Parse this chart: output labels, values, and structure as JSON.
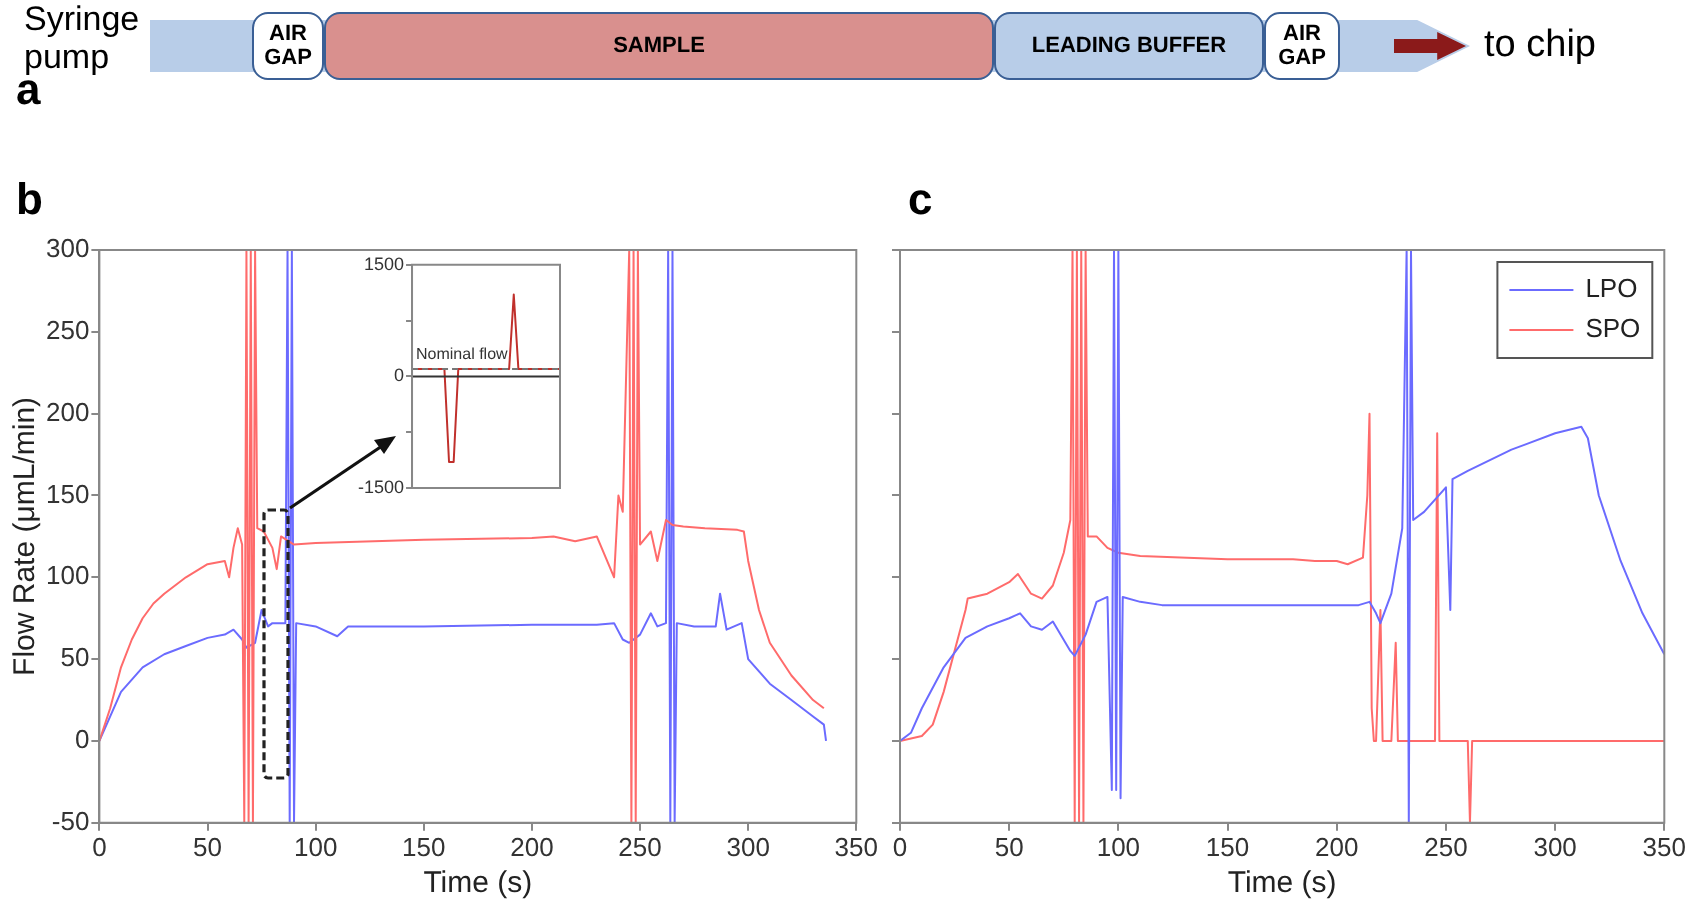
{
  "chart_data": [
    {
      "type": "other",
      "title": "a",
      "annotations": [
        "Syringe pump",
        "AIR GAP",
        "SAMPLE",
        "LEADING BUFFER",
        "AIR GAP",
        "to chip"
      ]
    },
    {
      "type": "line",
      "title": "b",
      "xlabel": "Time (s)",
      "ylabel": "Flow Rate (μmL/min)",
      "xlim": [
        0,
        350
      ],
      "ylim": [
        -50,
        300
      ],
      "xticks": [
        0,
        50,
        100,
        150,
        200,
        250,
        300,
        350
      ],
      "yticks": [
        -50,
        0,
        50,
        100,
        150,
        200,
        250,
        300
      ],
      "grid": false,
      "legend": false,
      "marker": "none",
      "line_style": "solid",
      "series": [
        {
          "color": "#ff6b6b",
          "x": [
            0,
            5,
            10,
            15,
            20,
            25,
            30,
            40,
            50,
            58,
            60,
            62,
            64,
            66,
            67,
            68,
            69,
            70,
            71,
            72,
            73,
            76,
            80,
            82,
            84,
            90,
            100,
            150,
            200,
            210,
            220,
            230,
            238,
            240,
            242,
            245,
            246,
            247,
            248,
            249,
            250,
            255,
            258,
            262,
            265,
            270,
            280,
            295,
            298,
            300,
            305,
            310,
            320,
            330,
            335
          ],
          "values": [
            0,
            20,
            45,
            62,
            75,
            84,
            90,
            100,
            108,
            110,
            100,
            118,
            130,
            120,
            -50,
            300,
            -50,
            300,
            -50,
            300,
            130,
            128,
            118,
            105,
            125,
            120,
            121,
            123,
            124,
            125,
            122,
            125,
            100,
            150,
            140,
            300,
            -50,
            300,
            -50,
            300,
            120,
            128,
            110,
            135,
            132,
            131,
            130,
            129,
            128,
            110,
            80,
            60,
            40,
            25,
            20
          ]
        },
        {
          "color": "#6b6bff",
          "x": [
            0,
            5,
            10,
            20,
            30,
            40,
            50,
            58,
            62,
            66,
            68,
            72,
            75,
            78,
            80,
            86,
            87,
            88,
            89,
            90,
            91,
            100,
            110,
            115,
            150,
            200,
            230,
            238,
            242,
            245,
            250,
            255,
            258,
            262,
            263,
            264,
            265,
            266,
            267,
            275,
            285,
            287,
            290,
            297,
            300,
            310,
            320,
            330,
            335,
            336
          ],
          "values": [
            0,
            15,
            30,
            45,
            53,
            58,
            63,
            65,
            68,
            62,
            57,
            60,
            80,
            70,
            72,
            72,
            300,
            -50,
            300,
            -50,
            72,
            70,
            64,
            70,
            70,
            71,
            71,
            72,
            62,
            60,
            65,
            78,
            70,
            72,
            300,
            -50,
            300,
            -50,
            72,
            70,
            70,
            90,
            68,
            72,
            50,
            35,
            25,
            15,
            10,
            0
          ]
        }
      ]
    },
    {
      "type": "line",
      "tick_labels": "y",
      "categories": [
        null,
        null,
        null,
        null,
        null,
        null,
        null,
        null,
        null,
        null,
        null,
        null,
        null,
        null,
        null,
        null,
        null,
        null,
        null,
        null,
        null,
        null,
        null,
        null,
        null,
        null,
        null,
        null,
        null,
        null,
        null,
        null,
        null
      ],
      "ylim": [
        -1500,
        1500
      ],
      "yticks": [
        -1500,
        {
          "value": -750,
          "label": null
        },
        0,
        {
          "value": 750,
          "label": null
        },
        1500
      ],
      "grid": false,
      "legend": false,
      "marker": "none",
      "ref_lines": [
        {
          "axis": "y",
          "value": 0,
          "color": "#333333",
          "line_style": "solid"
        },
        {
          "axis": "y",
          "value": 100,
          "label": "Nominal flow",
          "color": "#777777",
          "line_style": "dashed"
        }
      ],
      "series": [
        {
          "color": "#c0302c",
          "values": [
            100,
            100,
            100,
            100,
            100,
            100,
            100,
            100,
            -1150,
            -1150,
            100,
            100,
            100,
            100,
            100,
            100,
            100,
            100,
            100,
            100,
            100,
            100,
            1100,
            100,
            100,
            100,
            100,
            100,
            100,
            100,
            100,
            100,
            100
          ]
        }
      ]
    },
    {
      "type": "line",
      "title": "c",
      "xlabel": "Time (s)",
      "tick_labels": "x",
      "xlim": [
        0,
        350
      ],
      "ylim": [
        -50,
        300
      ],
      "xticks": [
        0,
        50,
        100,
        150,
        200,
        250,
        300,
        350
      ],
      "yticks": [
        -50,
        0,
        50,
        100,
        150,
        200,
        250,
        300
      ],
      "grid": false,
      "legend": "top right",
      "marker": "none",
      "line_style": "solid",
      "series": [
        {
          "name": "LPO",
          "color": "#6b6bff",
          "x": [
            0,
            5,
            10,
            20,
            30,
            40,
            50,
            55,
            60,
            65,
            70,
            78,
            80,
            85,
            90,
            95,
            97,
            98,
            99,
            100,
            101,
            102,
            110,
            120,
            150,
            200,
            210,
            215,
            218,
            220,
            225,
            230,
            232,
            233,
            234,
            235,
            240,
            250,
            252,
            253,
            260,
            280,
            300,
            312,
            315,
            320,
            330,
            340,
            350
          ],
          "values": [
            0,
            5,
            20,
            45,
            63,
            70,
            75,
            78,
            70,
            68,
            73,
            55,
            52,
            65,
            85,
            88,
            -30,
            300,
            -30,
            300,
            -35,
            88,
            85,
            83,
            83,
            83,
            83,
            85,
            78,
            72,
            90,
            130,
            300,
            -50,
            300,
            135,
            140,
            155,
            80,
            160,
            165,
            178,
            188,
            192,
            185,
            150,
            110,
            78,
            53
          ]
        },
        {
          "name": "SPO",
          "color": "#ff6b6b",
          "x": [
            0,
            10,
            15,
            20,
            30,
            31,
            40,
            50,
            54,
            60,
            65,
            70,
            75,
            78,
            79,
            80,
            81,
            82,
            83,
            84,
            85,
            86,
            90,
            95,
            100,
            110,
            150,
            180,
            190,
            200,
            205,
            212,
            214,
            215,
            216,
            217,
            218,
            220,
            221,
            225,
            227,
            228,
            240,
            245,
            246,
            247,
            260,
            261,
            262,
            350
          ],
          "values": [
            0,
            3,
            10,
            30,
            80,
            87,
            90,
            97,
            102,
            90,
            87,
            95,
            115,
            135,
            300,
            -50,
            300,
            -50,
            300,
            -50,
            300,
            125,
            125,
            118,
            115,
            113,
            111,
            111,
            110,
            110,
            108,
            112,
            150,
            200,
            20,
            0,
            0,
            80,
            0,
            0,
            60,
            0,
            0,
            0,
            188,
            0,
            0,
            -50,
            0,
            0
          ]
        }
      ]
    }
  ]
}
